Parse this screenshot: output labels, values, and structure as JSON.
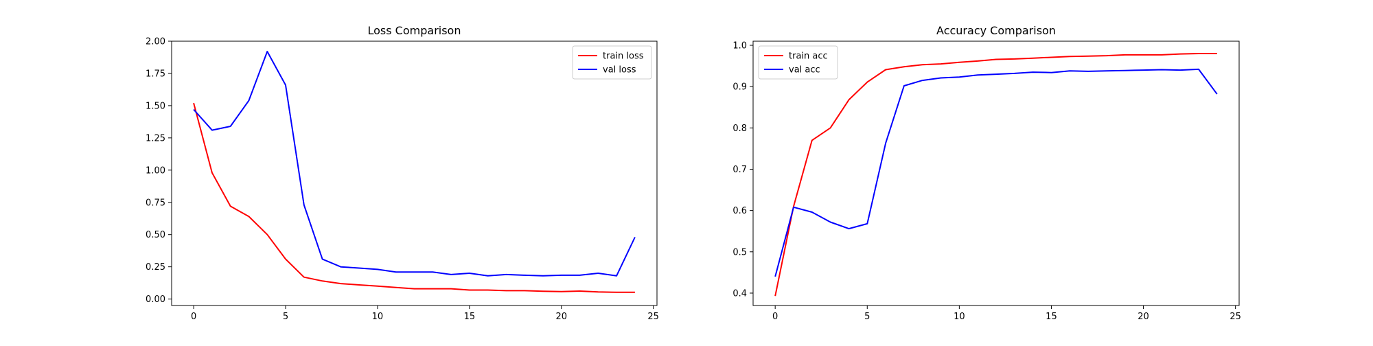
{
  "chart_data": [
    {
      "type": "line",
      "title": "Loss Comparison",
      "xlabel": "",
      "ylabel": "",
      "xlim": [
        -1.2,
        25.2
      ],
      "ylim": [
        -0.05,
        2.0
      ],
      "xticks": [
        0,
        5,
        10,
        15,
        20,
        25
      ],
      "xtick_labels": [
        "0",
        "5",
        "10",
        "15",
        "20",
        "25"
      ],
      "yticks": [
        0.0,
        0.25,
        0.5,
        0.75,
        1.0,
        1.25,
        1.5,
        1.75,
        2.0
      ],
      "ytick_labels": [
        "0.00",
        "0.25",
        "0.50",
        "0.75",
        "1.00",
        "1.25",
        "1.50",
        "1.75",
        "2.00"
      ],
      "grid": false,
      "legend_position": "upper right",
      "x": [
        0,
        1,
        2,
        3,
        4,
        5,
        6,
        7,
        8,
        9,
        10,
        11,
        12,
        13,
        14,
        15,
        16,
        17,
        18,
        19,
        20,
        21,
        22,
        23,
        24
      ],
      "series": [
        {
          "name": "train loss",
          "color": "#ff0000",
          "values": [
            1.52,
            0.98,
            0.72,
            0.64,
            0.5,
            0.31,
            0.17,
            0.14,
            0.12,
            0.11,
            0.1,
            0.09,
            0.08,
            0.08,
            0.08,
            0.07,
            0.07,
            0.065,
            0.065,
            0.06,
            0.058,
            0.062,
            0.055,
            0.052,
            0.052
          ]
        },
        {
          "name": "val loss",
          "color": "#0000ff",
          "values": [
            1.47,
            1.31,
            1.34,
            1.54,
            1.92,
            1.66,
            0.73,
            0.31,
            0.25,
            0.24,
            0.23,
            0.21,
            0.21,
            0.21,
            0.19,
            0.2,
            0.18,
            0.19,
            0.185,
            0.18,
            0.185,
            0.185,
            0.2,
            0.18,
            0.48
          ]
        }
      ]
    },
    {
      "type": "line",
      "title": "Accuracy Comparison",
      "xlabel": "",
      "ylabel": "",
      "xlim": [
        -1.2,
        25.2
      ],
      "ylim": [
        0.37,
        1.01
      ],
      "xticks": [
        0,
        5,
        10,
        15,
        20,
        25
      ],
      "xtick_labels": [
        "0",
        "5",
        "10",
        "15",
        "20",
        "25"
      ],
      "yticks": [
        0.4,
        0.5,
        0.6,
        0.7,
        0.8,
        0.9,
        1.0
      ],
      "ytick_labels": [
        "0.4",
        "0.5",
        "0.6",
        "0.7",
        "0.8",
        "0.9",
        "1.0"
      ],
      "grid": false,
      "legend_position": "upper left",
      "x": [
        0,
        1,
        2,
        3,
        4,
        5,
        6,
        7,
        8,
        9,
        10,
        11,
        12,
        13,
        14,
        15,
        16,
        17,
        18,
        19,
        20,
        21,
        22,
        23,
        24
      ],
      "series": [
        {
          "name": "train acc",
          "color": "#ff0000",
          "values": [
            0.393,
            0.61,
            0.77,
            0.8,
            0.868,
            0.911,
            0.941,
            0.948,
            0.953,
            0.955,
            0.959,
            0.962,
            0.966,
            0.967,
            0.969,
            0.971,
            0.973,
            0.974,
            0.975,
            0.977,
            0.977,
            0.977,
            0.979,
            0.98,
            0.98
          ]
        },
        {
          "name": "val acc",
          "color": "#0000ff",
          "values": [
            0.44,
            0.608,
            0.596,
            0.572,
            0.556,
            0.568,
            0.763,
            0.902,
            0.915,
            0.921,
            0.923,
            0.928,
            0.93,
            0.932,
            0.935,
            0.934,
            0.938,
            0.937,
            0.938,
            0.939,
            0.94,
            0.941,
            0.94,
            0.942,
            0.882
          ]
        }
      ]
    }
  ]
}
